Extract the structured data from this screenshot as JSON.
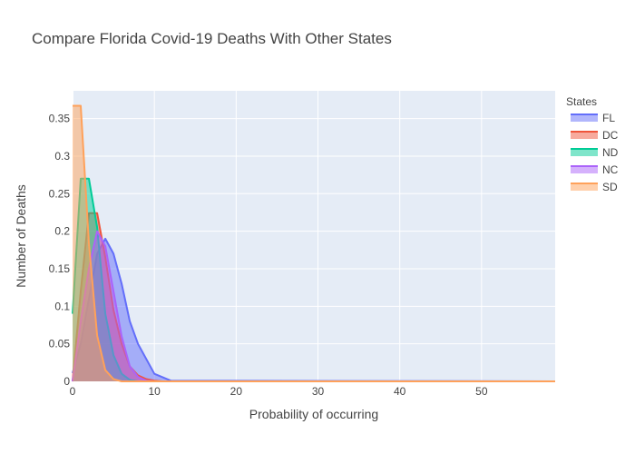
{
  "chart_data": {
    "type": "area",
    "title": "Compare Florida Covid-19 Deaths With Other States",
    "xlabel": "Probability of occurring",
    "ylabel": "Number of Deaths",
    "xlim": [
      0,
      59
    ],
    "ylim": [
      0,
      0.387
    ],
    "x_ticks": [
      "0",
      "10",
      "20",
      "30",
      "40",
      "50"
    ],
    "x_tick_values": [
      0,
      10,
      20,
      30,
      40,
      50
    ],
    "y_ticks": [
      "0",
      "0.05",
      "0.1",
      "0.15",
      "0.2",
      "0.25",
      "0.3",
      "0.35"
    ],
    "y_tick_values": [
      0,
      0.05,
      0.1,
      0.15,
      0.2,
      0.25,
      0.3,
      0.35
    ],
    "grid": true,
    "legend_title": "States",
    "legend_position": "top-right",
    "series": [
      {
        "name": "FL",
        "color": "#636efa",
        "x": [
          0,
          1,
          2,
          3,
          4,
          5,
          6,
          7,
          8,
          10,
          12,
          59
        ],
        "y": [
          0.011,
          0.05,
          0.11,
          0.17,
          0.19,
          0.17,
          0.13,
          0.08,
          0.05,
          0.01,
          0.001,
          0
        ]
      },
      {
        "name": "DC",
        "color": "#EF553B",
        "x": [
          0,
          1,
          2,
          3,
          4,
          5,
          6,
          7,
          8,
          9,
          10,
          11,
          59
        ],
        "y": [
          0.0,
          0.12,
          0.224,
          0.224,
          0.165,
          0.095,
          0.05,
          0.02,
          0.008,
          0.003,
          0.001,
          0.0,
          0
        ]
      },
      {
        "name": "ND",
        "color": "#00cc96",
        "x": [
          0,
          1,
          2,
          3,
          4,
          5,
          6,
          7,
          8,
          9,
          59
        ],
        "y": [
          0.09,
          0.27,
          0.27,
          0.205,
          0.09,
          0.035,
          0.01,
          0.002,
          0.0,
          0.0,
          0
        ]
      },
      {
        "name": "NC",
        "color": "#ab63fa",
        "x": [
          0,
          1,
          2,
          3,
          4,
          5,
          6,
          7,
          8,
          9,
          10,
          59
        ],
        "y": [
          0.0,
          0.08,
          0.15,
          0.2,
          0.18,
          0.12,
          0.06,
          0.02,
          0.006,
          0.001,
          0.0,
          0
        ]
      },
      {
        "name": "SD",
        "color": "#FFA15A",
        "x": [
          0,
          1,
          2,
          3,
          4,
          5,
          6,
          7,
          59
        ],
        "y": [
          0.367,
          0.367,
          0.184,
          0.061,
          0.015,
          0.003,
          0.0,
          0.0,
          0
        ]
      }
    ]
  }
}
